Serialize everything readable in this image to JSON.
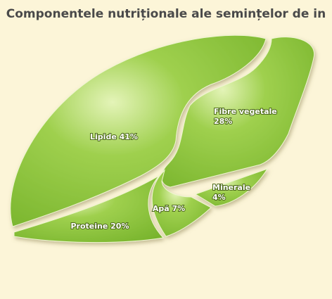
{
  "chart_data": {
    "type": "seed",
    "title": "Componentele nutriționale ale semințelor de in",
    "categories": [
      "Lipide",
      "Fibre vegetale",
      "Minerale",
      "Apă",
      "Proteine"
    ],
    "values": [
      41,
      28,
      4,
      7,
      20
    ],
    "value_labels": [
      "41%",
      "28%",
      "4%",
      "7%",
      "20%"
    ],
    "color": "#8dc63f"
  }
}
